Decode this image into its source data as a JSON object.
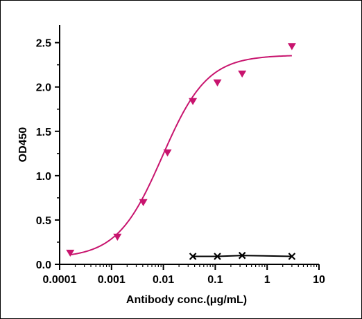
{
  "chart_data": {
    "type": "scatter",
    "xlabel": "Antibody conc.(μg/mL)",
    "ylabel": "OD450",
    "x_scale": "log10",
    "xlim": [
      0.0001,
      10
    ],
    "ylim": [
      0,
      2.7
    ],
    "x_tick_labels": [
      "0.0001",
      "0.001",
      "0.01",
      "0.1",
      "1",
      "10"
    ],
    "y_tick_labels": [
      "0.0",
      "0.5",
      "1.0",
      "1.5",
      "2.0",
      "2.5"
    ],
    "grid": false,
    "legend": "none",
    "series": [
      {
        "marker": "triangle-down",
        "color": "#c8146e",
        "x": [
          0.00016,
          0.0013,
          0.0041,
          0.012,
          0.037,
          0.11,
          0.33,
          3.0
        ],
        "y": [
          0.13,
          0.31,
          0.7,
          1.26,
          1.84,
          2.05,
          2.15,
          2.46
        ],
        "fit_curve": {
          "model": "4PL",
          "bottom": 0.07,
          "top": 2.36,
          "ec50": 0.0095,
          "hill": 1.0
        }
      },
      {
        "marker": "x",
        "color": "#000000",
        "x": [
          0.037,
          0.11,
          0.33,
          3.0
        ],
        "y": [
          0.09,
          0.09,
          0.1,
          0.09
        ]
      }
    ]
  }
}
